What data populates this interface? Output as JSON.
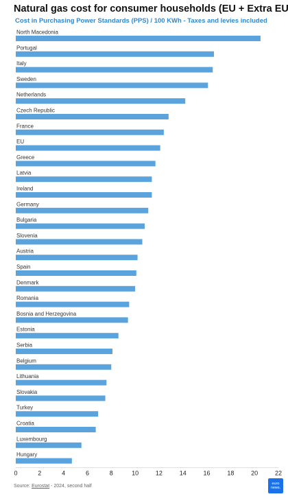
{
  "header": {
    "title": "Natural gas cost for consumer households (EU + Extra EU)",
    "subtitle": "Cost in Purchasing Power Standards (PPS) / 100 KWh - Taxes and levies included"
  },
  "footer": {
    "source_prefix": "Source: ",
    "source_name": "Eurostat",
    "source_suffix": " - 2024, second half",
    "logo_line1": "euro",
    "logo_line2": "news."
  },
  "colors": {
    "bar": "#5aa3dd",
    "subtitle": "#2f88d4",
    "logo": "#1b72e8"
  },
  "chart_data": {
    "type": "bar",
    "orientation": "horizontal",
    "title": "Natural gas cost for consumer households (EU + Extra EU)",
    "subtitle": "Cost in Purchasing Power Standards (PPS) / 100 KWh - Taxes and levies included",
    "categories": [
      "North Macedonia",
      "Portugal",
      "Italy",
      "Sweden",
      "Netherlands",
      "Czech Republic",
      "France",
      "EU",
      "Greece",
      "Latvia",
      "Ireland",
      "Germany",
      "Bulgaria",
      "Slovenia",
      "Austria",
      "Spain",
      "Denmark",
      "Romania",
      "Bosnia and Herzegovina",
      "Estonia",
      "Serbia",
      "Belgium",
      "Lithuania",
      "Slovakia",
      "Turkey",
      "Croatia",
      "Luxembourg",
      "Hungary"
    ],
    "values": [
      20.5,
      16.6,
      16.5,
      16.1,
      14.2,
      12.8,
      12.4,
      12.1,
      11.7,
      11.4,
      11.4,
      11.1,
      10.8,
      10.6,
      10.2,
      10.1,
      10.0,
      9.5,
      9.4,
      8.6,
      8.1,
      8.0,
      7.6,
      7.5,
      6.9,
      6.7,
      5.5,
      4.7
    ],
    "xlim": [
      0,
      22
    ],
    "xticks": [
      0,
      2,
      4,
      6,
      8,
      10,
      12,
      14,
      16,
      18,
      20,
      22
    ],
    "grid": false,
    "legend": "none"
  }
}
